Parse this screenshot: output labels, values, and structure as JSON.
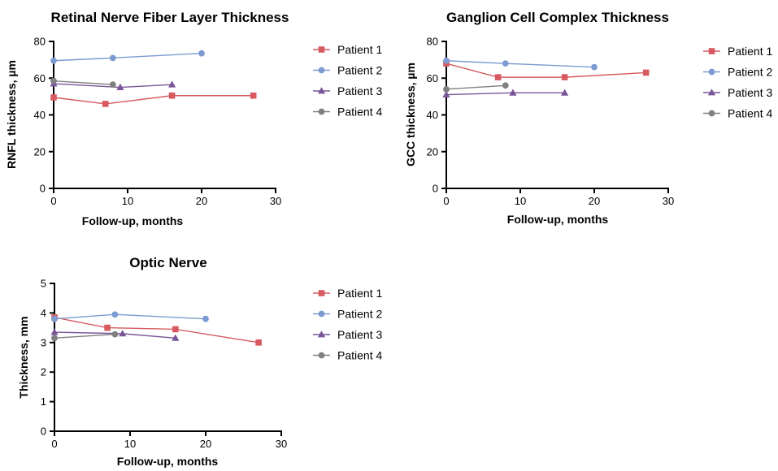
{
  "chart_data": [
    {
      "type": "line",
      "title": "Retinal Nerve Fiber Layer Thickness",
      "xlabel": "Follow-up, months",
      "ylabel": "RNFL thickness, µm",
      "xlim": [
        0,
        30
      ],
      "ylim": [
        0,
        80
      ],
      "xticks": [
        0,
        10,
        20,
        30
      ],
      "yticks": [
        0,
        20,
        40,
        60,
        80
      ],
      "legend": "right",
      "series": [
        {
          "name": "Patient 1",
          "color": "#d65a5f",
          "marker": "square",
          "points": [
            [
              0,
              49.5
            ],
            [
              7,
              46
            ],
            [
              16,
              50.5
            ],
            [
              27,
              50.5
            ]
          ]
        },
        {
          "name": "Patient 2",
          "color": "#7b9bd1",
          "marker": "circle",
          "points": [
            [
              0,
              69.5
            ],
            [
              8,
              71
            ],
            [
              20,
              73.5
            ]
          ]
        },
        {
          "name": "Patient 3",
          "color": "#7a5699",
          "marker": "triangle",
          "points": [
            [
              0,
              57
            ],
            [
              9,
              55
            ],
            [
              16,
              56.5
            ]
          ]
        },
        {
          "name": "Patient 4",
          "color": "#808080",
          "marker": "circle",
          "points": [
            [
              0,
              58.5
            ],
            [
              8,
              56.5
            ]
          ]
        }
      ]
    },
    {
      "type": "line",
      "title": "Ganglion Cell Complex Thickness",
      "xlabel": "Follow-up, months",
      "ylabel": "GCC thickness, µm",
      "xlim": [
        0,
        30
      ],
      "ylim": [
        0,
        80
      ],
      "xticks": [
        0,
        10,
        20,
        30
      ],
      "yticks": [
        0,
        20,
        40,
        60,
        80
      ],
      "legend": "right",
      "series": [
        {
          "name": "Patient 1",
          "color": "#d65a5f",
          "marker": "square",
          "points": [
            [
              0,
              68
            ],
            [
              7,
              60.5
            ],
            [
              16,
              60.5
            ],
            [
              27,
              63
            ]
          ]
        },
        {
          "name": "Patient 2",
          "color": "#7b9bd1",
          "marker": "circle",
          "points": [
            [
              0,
              69.5
            ],
            [
              8,
              68
            ],
            [
              20,
              66
            ]
          ]
        },
        {
          "name": "Patient 3",
          "color": "#7a5699",
          "marker": "triangle",
          "points": [
            [
              0,
              51
            ],
            [
              9,
              52
            ],
            [
              16,
              52
            ]
          ]
        },
        {
          "name": "Patient 4",
          "color": "#808080",
          "marker": "circle",
          "points": [
            [
              0,
              54
            ],
            [
              8,
              56
            ]
          ]
        }
      ]
    },
    {
      "type": "line",
      "title": "Optic Nerve",
      "xlabel": "Follow-up, months",
      "ylabel": "Thickness, mm",
      "xlim": [
        0,
        30
      ],
      "ylim": [
        0,
        5
      ],
      "xticks": [
        0,
        10,
        20,
        30
      ],
      "yticks": [
        0,
        1,
        2,
        3,
        4,
        5
      ],
      "legend": "right",
      "series": [
        {
          "name": "Patient 1",
          "color": "#d65a5f",
          "marker": "square",
          "points": [
            [
              0,
              3.85
            ],
            [
              7,
              3.5
            ],
            [
              16,
              3.45
            ],
            [
              27,
              3.0
            ]
          ]
        },
        {
          "name": "Patient 2",
          "color": "#7b9bd1",
          "marker": "circle",
          "points": [
            [
              0,
              3.8
            ],
            [
              8,
              3.95
            ],
            [
              20,
              3.8
            ]
          ]
        },
        {
          "name": "Patient 3",
          "color": "#7a5699",
          "marker": "triangle",
          "points": [
            [
              0,
              3.35
            ],
            [
              9,
              3.3
            ],
            [
              16,
              3.15
            ]
          ]
        },
        {
          "name": "Patient 4",
          "color": "#808080",
          "marker": "circle",
          "points": [
            [
              0,
              3.15
            ],
            [
              8,
              3.28
            ]
          ]
        }
      ]
    }
  ]
}
